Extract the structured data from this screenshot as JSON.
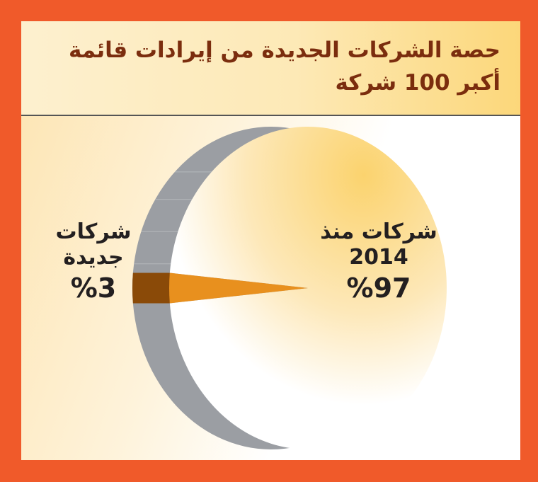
{
  "colors": {
    "frame": "#f05a2a",
    "title_text": "#7b2d0e",
    "slice_old": "#fbd36e",
    "slice_new": "#e8901e",
    "side_gray": "#9b9ea3"
  },
  "chart_data": {
    "type": "pie",
    "title": "حصة الشركات الجديدة من إيرادات قائمة أكبر 100 شركة",
    "slices": [
      {
        "name": "شركات منذ 2014",
        "value": 97,
        "label": "%97"
      },
      {
        "name": "شركات جديدة",
        "value": 3,
        "label": "%3"
      }
    ],
    "legend": "none"
  }
}
